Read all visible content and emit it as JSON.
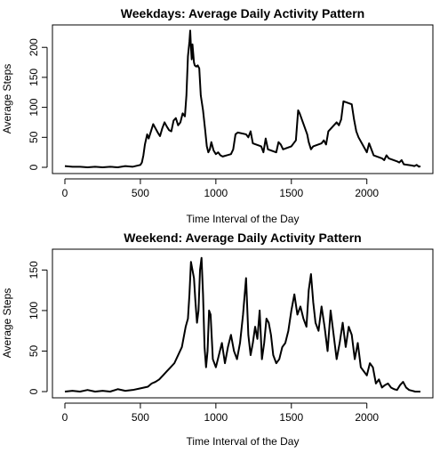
{
  "chart_data": [
    {
      "type": "line",
      "title": "Weekdays: Average Daily Activity Pattern",
      "xlabel": "Time Interval of the Day",
      "ylabel": "Average Steps",
      "xlim": [
        0,
        2355
      ],
      "ylim": [
        0,
        230
      ],
      "xticks": [
        0,
        500,
        1000,
        1500,
        2000
      ],
      "yticks": [
        0,
        50,
        100,
        150,
        200
      ],
      "grid": false,
      "legend": "none",
      "line_color": "#000000",
      "x": [
        0,
        50,
        100,
        150,
        200,
        250,
        300,
        350,
        400,
        450,
        500,
        510,
        520,
        530,
        545,
        555,
        570,
        585,
        600,
        615,
        630,
        645,
        660,
        675,
        690,
        705,
        720,
        735,
        750,
        765,
        780,
        795,
        805,
        815,
        825,
        830,
        835,
        840,
        845,
        850,
        855,
        860,
        870,
        880,
        890,
        900,
        915,
        930,
        940,
        950,
        960,
        970,
        985,
        1000,
        1015,
        1030,
        1045,
        1100,
        1115,
        1130,
        1145,
        1200,
        1215,
        1230,
        1245,
        1300,
        1315,
        1330,
        1345,
        1400,
        1415,
        1430,
        1445,
        1500,
        1515,
        1530,
        1545,
        1555,
        1605,
        1615,
        1630,
        1645,
        1700,
        1715,
        1730,
        1745,
        1800,
        1815,
        1830,
        1845,
        1900,
        1915,
        1930,
        1945,
        2000,
        2015,
        2030,
        2045,
        2100,
        2115,
        2130,
        2145,
        2200,
        2215,
        2230,
        2245,
        2300,
        2315,
        2330,
        2345,
        2355
      ],
      "values": [
        2,
        1,
        1,
        0,
        1,
        0,
        1,
        0,
        2,
        1,
        4,
        8,
        20,
        38,
        55,
        48,
        60,
        72,
        65,
        58,
        52,
        65,
        75,
        68,
        62,
        60,
        78,
        82,
        70,
        75,
        90,
        85,
        120,
        185,
        210,
        228,
        200,
        180,
        205,
        190,
        175,
        170,
        168,
        170,
        165,
        120,
        95,
        60,
        35,
        25,
        30,
        42,
        28,
        22,
        25,
        20,
        18,
        22,
        30,
        55,
        58,
        55,
        50,
        60,
        40,
        35,
        25,
        48,
        30,
        25,
        42,
        38,
        30,
        35,
        40,
        45,
        95,
        90,
        55,
        42,
        30,
        35,
        40,
        45,
        38,
        60,
        75,
        70,
        80,
        110,
        105,
        80,
        60,
        50,
        25,
        40,
        30,
        20,
        15,
        12,
        20,
        15,
        10,
        8,
        12,
        5,
        3,
        2,
        4,
        1,
        2
      ],
      "description": ""
    },
    {
      "type": "line",
      "title": "Weekend: Average Daily Activity Pattern",
      "xlabel": "Time Interval of the Day",
      "ylabel": "Average Steps",
      "xlim": [
        0,
        2355
      ],
      "ylim": [
        0,
        168
      ],
      "xticks": [
        0,
        500,
        1000,
        1500,
        2000
      ],
      "yticks": [
        0,
        50,
        100,
        150
      ],
      "grid": false,
      "legend": "none",
      "line_color": "#000000",
      "x": [
        0,
        50,
        100,
        150,
        200,
        250,
        300,
        350,
        400,
        450,
        500,
        550,
        575,
        600,
        625,
        650,
        675,
        700,
        725,
        750,
        775,
        800,
        815,
        825,
        835,
        845,
        855,
        865,
        875,
        885,
        895,
        905,
        915,
        925,
        935,
        945,
        955,
        965,
        980,
        1000,
        1020,
        1040,
        1060,
        1080,
        1100,
        1120,
        1140,
        1160,
        1180,
        1200,
        1215,
        1230,
        1245,
        1260,
        1275,
        1290,
        1305,
        1320,
        1335,
        1350,
        1365,
        1380,
        1400,
        1420,
        1440,
        1460,
        1480,
        1500,
        1520,
        1540,
        1560,
        1580,
        1600,
        1615,
        1630,
        1645,
        1660,
        1680,
        1700,
        1720,
        1740,
        1760,
        1780,
        1800,
        1820,
        1840,
        1860,
        1880,
        1900,
        1920,
        1940,
        1960,
        1980,
        2000,
        2020,
        2040,
        2060,
        2080,
        2100,
        2120,
        2140,
        2160,
        2180,
        2200,
        2220,
        2240,
        2260,
        2280,
        2300,
        2320,
        2340,
        2355
      ],
      "values": [
        0,
        1,
        0,
        2,
        0,
        1,
        0,
        3,
        1,
        2,
        4,
        6,
        10,
        12,
        15,
        20,
        25,
        30,
        35,
        45,
        55,
        80,
        90,
        120,
        160,
        150,
        140,
        110,
        85,
        100,
        150,
        165,
        120,
        55,
        30,
        50,
        100,
        95,
        40,
        30,
        45,
        60,
        35,
        55,
        70,
        50,
        40,
        60,
        95,
        140,
        70,
        45,
        60,
        80,
        65,
        100,
        40,
        60,
        90,
        85,
        70,
        45,
        35,
        40,
        55,
        60,
        75,
        100,
        120,
        95,
        105,
        90,
        80,
        125,
        145,
        110,
        85,
        75,
        105,
        80,
        50,
        100,
        70,
        40,
        60,
        85,
        55,
        80,
        70,
        40,
        60,
        30,
        25,
        20,
        35,
        30,
        10,
        15,
        5,
        8,
        10,
        5,
        3,
        2,
        8,
        12,
        5,
        2,
        1,
        0,
        0,
        0
      ]
    }
  ]
}
